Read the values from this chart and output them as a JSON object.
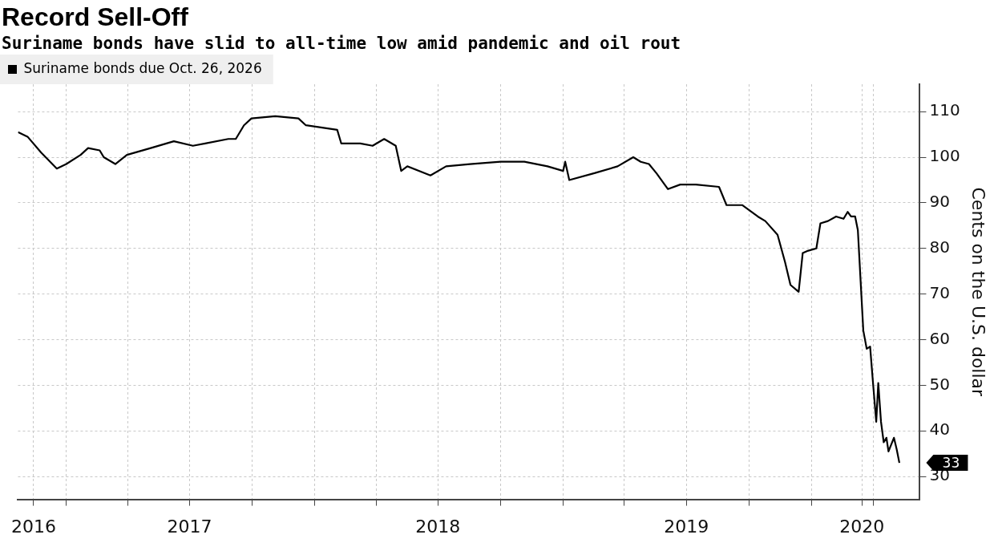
{
  "chart_data": {
    "type": "line",
    "title": "Record Sell-Off",
    "subtitle": "Suriname bonds have slid to all-time low amid pandemic and oil rout",
    "ylabel": "Cents on the U.S. dollar",
    "x": [
      "2016-10-22",
      "2016-11-05",
      "2016-11-25",
      "2016-12-18",
      "2017-01-01",
      "2017-01-22",
      "2017-02-02",
      "2017-02-19",
      "2017-02-25",
      "2017-03-14",
      "2017-03-31",
      "2017-05-05",
      "2017-06-08",
      "2017-07-06",
      "2017-07-24",
      "2017-08-27",
      "2017-09-07",
      "2017-09-19",
      "2017-09-30",
      "2017-11-04",
      "2017-12-08",
      "2017-12-19",
      "2018-02-03",
      "2018-02-09",
      "2018-03-09",
      "2018-03-27",
      "2018-04-13",
      "2018-04-30",
      "2018-05-08",
      "2018-05-17",
      "2018-06-20",
      "2018-07-13",
      "2018-08-17",
      "2018-10-01",
      "2018-11-05",
      "2018-12-09",
      "2019-01-01",
      "2019-01-04",
      "2019-01-10",
      "2019-02-16",
      "2019-03-22",
      "2019-04-14",
      "2019-04-25",
      "2019-05-07",
      "2019-05-18",
      "2019-06-04",
      "2019-06-22",
      "2019-07-15",
      "2019-08-18",
      "2019-08-29",
      "2019-09-21",
      "2019-10-14",
      "2019-10-25",
      "2019-11-12",
      "2019-11-23",
      "2019-12-01",
      "2019-12-13",
      "2019-12-19",
      "2019-12-27",
      "2020-01-08",
      "2020-01-14",
      "2020-01-25",
      "2020-02-06",
      "2020-02-17",
      "2020-02-23",
      "2020-02-28",
      "2020-03-05",
      "2020-03-09",
      "2020-03-13",
      "2020-03-17",
      "2020-03-22",
      "2020-03-27",
      "2020-03-31",
      "2020-04-05",
      "2020-04-08",
      "2020-04-12",
      "2020-04-16",
      "2020-04-20",
      "2020-04-23",
      "2020-05-01",
      "2020-05-05",
      "2020-05-09"
    ],
    "series": [
      {
        "name": "Suriname bonds due Oct. 26, 2026",
        "color": "#000000",
        "values": [
          105.5,
          104.5,
          101,
          97.5,
          98.5,
          100.5,
          102,
          101.5,
          100,
          98.5,
          100.5,
          102,
          103.5,
          102.5,
          103,
          104,
          104,
          107,
          108.5,
          109,
          108.5,
          107,
          106,
          103,
          103,
          102.5,
          104,
          102.5,
          97,
          98,
          96,
          98,
          98.5,
          99,
          99,
          98,
          97,
          99,
          95,
          96.5,
          98,
          100,
          99,
          98.5,
          96.5,
          93,
          94,
          94,
          93.5,
          89.5,
          89.5,
          87,
          86,
          83,
          77,
          72,
          70.5,
          79,
          79.5,
          80,
          85.5,
          86,
          87,
          86.5,
          88,
          87,
          87,
          84,
          73,
          62,
          58,
          58.5,
          51,
          42,
          50.5,
          42,
          37.5,
          38.5,
          35.5,
          38.5,
          36,
          33
        ]
      }
    ],
    "xlim": [
      "2016-10-22",
      "2020-06-08"
    ],
    "xticks": [
      {
        "value": "2016-11-14",
        "label": "2016"
      },
      {
        "value": "2017-01-01",
        "label": null
      },
      {
        "value": "2017-04-01",
        "label": null
      },
      {
        "value": "2017-07-01",
        "label": "2017"
      },
      {
        "value": "2017-10-01",
        "label": null
      },
      {
        "value": "2018-01-01",
        "label": null
      },
      {
        "value": "2018-04-01",
        "label": null
      },
      {
        "value": "2018-07-01",
        "label": "2018"
      },
      {
        "value": "2018-10-01",
        "label": null
      },
      {
        "value": "2019-01-01",
        "label": null
      },
      {
        "value": "2019-04-01",
        "label": null
      },
      {
        "value": "2019-07-01",
        "label": "2019"
      },
      {
        "value": "2019-10-01",
        "label": null
      },
      {
        "value": "2020-01-01",
        "label": null
      },
      {
        "value": "2020-03-15",
        "label": "2020"
      },
      {
        "value": "2020-04-01",
        "label": null
      }
    ],
    "ylim": [
      25,
      116
    ],
    "yticks": [
      30,
      40,
      50,
      60,
      70,
      80,
      90,
      100,
      110
    ],
    "grid": true,
    "legend": "top left",
    "annotations": [
      "33"
    ]
  }
}
